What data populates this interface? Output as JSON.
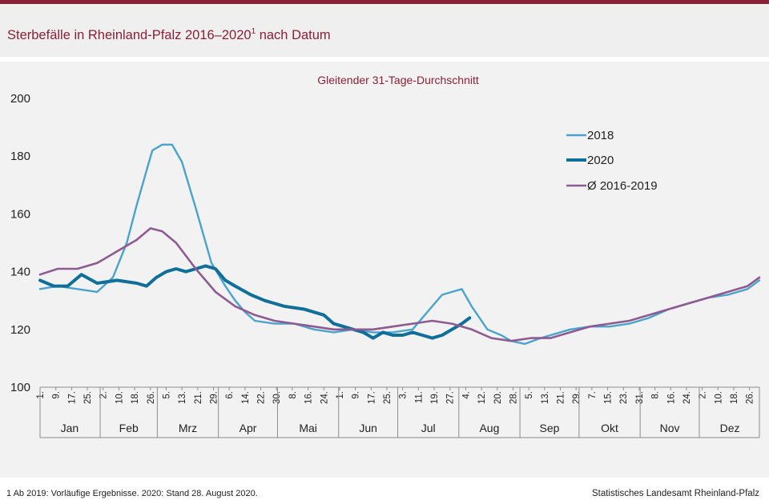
{
  "title": "Sterbefälle in Rheinland-Pfalz 2016–2020",
  "title_sup": "1",
  "title_rest": " nach Datum",
  "footnote": "1 Ab 2019: Vorläufige Ergebnisse. 2020: Stand 28. August 2020.",
  "source": "Statistisches Landesamt Rheinland-Pfalz",
  "colors": {
    "brand": "#8b2036",
    "s2018": "#4aa3cc",
    "s2020": "#0f6f9a",
    "savg": "#8e5a92"
  },
  "chart_data": {
    "type": "line",
    "subtitle": "Gleitender 31-Tage-Durchschnitt",
    "ylim": [
      100,
      200
    ],
    "yticks": [
      100,
      120,
      140,
      160,
      180,
      200
    ],
    "months": [
      "Jan",
      "Feb",
      "Mrz",
      "Apr",
      "Mai",
      "Jun",
      "Jul",
      "Aug",
      "Sep",
      "Okt",
      "Nov",
      "Dez"
    ],
    "month_days": [
      31,
      29,
      31,
      30,
      31,
      30,
      31,
      31,
      30,
      31,
      30,
      31
    ],
    "xtick_labels": [
      "1.",
      "9.",
      "17.",
      "25.",
      "2.",
      "10.",
      "18.",
      "26.",
      "5.",
      "13.",
      "21.",
      "29.",
      "6.",
      "14.",
      "22.",
      "30.",
      "8.",
      "16.",
      "24.",
      "1.",
      "9.",
      "17.",
      "25.",
      "3.",
      "11.",
      "19.",
      "27.",
      "4.",
      "12.",
      "20.",
      "28.",
      "5.",
      "13.",
      "21.",
      "29.",
      "7.",
      "15.",
      "23.",
      "31.",
      "8.",
      "16.",
      "24.",
      "2.",
      "10.",
      "18.",
      "26."
    ],
    "xtick_step_days": 8,
    "legend": [
      "2018",
      "2020",
      "Ø 2016-2019"
    ],
    "grid": false,
    "series": [
      {
        "name": "2018",
        "x_day": [
          1,
          10,
          20,
          30,
          38,
          45,
          50,
          55,
          58,
          63,
          68,
          73,
          80,
          88,
          95,
          100,
          105,
          110,
          120,
          130,
          140,
          150,
          160,
          170,
          180,
          190,
          200,
          205,
          210,
          215,
          220,
          228,
          235,
          240,
          247,
          255,
          260,
          270,
          280,
          290,
          300,
          310,
          320,
          330,
          340,
          350,
          360,
          366
        ],
        "values": [
          134,
          135,
          134,
          133,
          138,
          150,
          163,
          175,
          182,
          184,
          184,
          178,
          162,
          143,
          135,
          130,
          126,
          123,
          122,
          122,
          120,
          119,
          120,
          119,
          119,
          120,
          128,
          132,
          133,
          134,
          128,
          120,
          118,
          116,
          115,
          117,
          118,
          120,
          121,
          121,
          122,
          124,
          127,
          129,
          131,
          132,
          134,
          137
        ]
      },
      {
        "name": "2020",
        "x_day": [
          1,
          8,
          15,
          22,
          30,
          40,
          50,
          55,
          60,
          65,
          70,
          75,
          80,
          85,
          90,
          95,
          100,
          108,
          115,
          125,
          135,
          145,
          150,
          155,
          160,
          165,
          170,
          175,
          180,
          185,
          190,
          195,
          200,
          205,
          210,
          215,
          219
        ],
        "values": [
          137,
          135,
          135,
          139,
          136,
          137,
          136,
          135,
          138,
          140,
          141,
          140,
          141,
          142,
          141,
          137,
          135,
          132,
          130,
          128,
          127,
          125,
          122,
          121,
          120,
          119,
          117,
          119,
          118,
          118,
          119,
          118,
          117,
          118,
          120,
          122,
          124
        ]
      },
      {
        "name": "Ø 2016-2019",
        "x_day": [
          1,
          10,
          20,
          30,
          40,
          50,
          57,
          63,
          70,
          80,
          90,
          100,
          110,
          120,
          130,
          140,
          150,
          160,
          170,
          180,
          190,
          200,
          210,
          220,
          230,
          240,
          250,
          260,
          270,
          280,
          290,
          300,
          310,
          320,
          330,
          340,
          350,
          360,
          366
        ],
        "values": [
          139,
          141,
          141,
          143,
          147,
          151,
          155,
          154,
          150,
          141,
          133,
          128,
          125,
          123,
          122,
          121,
          120,
          120,
          120,
          121,
          122,
          123,
          122,
          120,
          117,
          116,
          117,
          117,
          119,
          121,
          122,
          123,
          125,
          127,
          129,
          131,
          133,
          135,
          138
        ]
      }
    ]
  }
}
